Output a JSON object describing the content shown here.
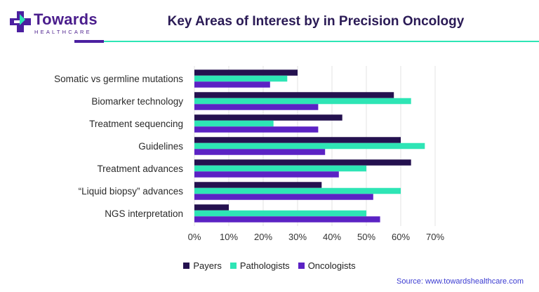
{
  "brand": {
    "name": "Towards",
    "tagline": "HEALTHCARE",
    "colors": {
      "purple": "#4b1fa0",
      "teal": "#2ee5b5"
    }
  },
  "source": "Source: www.towardshealthcare.com",
  "chart_data": {
    "type": "bar",
    "orientation": "horizontal",
    "title": "Key Areas of Interest by in Precision Oncology",
    "categories": [
      "Somatic vs germline mutations",
      "Biomarker technology",
      "Treatment sequencing",
      "Guidelines",
      "Treatment advances",
      "“Liquid biopsy” advances",
      "NGS interpretation"
    ],
    "series": [
      {
        "name": "Payers",
        "color": "#24114f",
        "values": [
          30,
          58,
          43,
          60,
          63,
          37,
          10
        ]
      },
      {
        "name": "Pathologists",
        "color": "#2ee5b5",
        "values": [
          27,
          63,
          23,
          67,
          50,
          60,
          50
        ]
      },
      {
        "name": "Oncologists",
        "color": "#5b22c4",
        "values": [
          22,
          36,
          36,
          38,
          42,
          52,
          54
        ]
      }
    ],
    "xlim": [
      0,
      70
    ],
    "xticks": [
      "0%",
      "10%",
      "20%",
      "30%",
      "40%",
      "50%",
      "60%",
      "70%"
    ],
    "grid": true,
    "legend": "bottom"
  }
}
